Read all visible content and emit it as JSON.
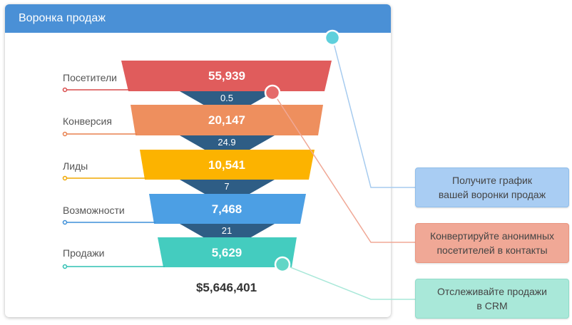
{
  "card": {
    "title": "Воронка продаж"
  },
  "funnel": {
    "stages": [
      {
        "label": "Посетители",
        "value": "55,939",
        "color": "#e05c5c",
        "dot_color": "#d94c4c"
      },
      {
        "label": "Конверсия",
        "value": "20,147",
        "color": "#ee8f5e",
        "dot_color": "#e8804e"
      },
      {
        "label": "Лиды",
        "value": "10,541",
        "color": "#fcb300",
        "dot_color": "#f0a800"
      },
      {
        "label": "Возможности",
        "value": "7,468",
        "color": "#4c9fe4",
        "dot_color": "#3d8fd8"
      },
      {
        "label": "Продажи",
        "value": "5,629",
        "color": "#44ccbf",
        "dot_color": "#2fc0b3"
      }
    ],
    "conversions": [
      "0.5",
      "24.9",
      "7",
      "21"
    ],
    "connector_color": "#2e5d85",
    "total": "$5,646,401"
  },
  "callouts": [
    {
      "lines": [
        "Получите график",
        "вашей воронки продаж"
      ],
      "bg": "#a9cdf3",
      "border": "#8fbdea",
      "line_color": "#a6cbef"
    },
    {
      "lines": [
        "Конвертируйте анонимных",
        "посетителей в контакты"
      ],
      "bg": "#f0a896",
      "border": "#e9957f",
      "line_color": "#f0a896"
    },
    {
      "lines": [
        "Отслеживайте продажи",
        "в CRM"
      ],
      "bg": "#a9e8d9",
      "border": "#8fdcc9",
      "line_color": "#a9e8d9"
    }
  ],
  "markers": {
    "teal": "#5fd0dc",
    "red": "#e56a6a",
    "mint": "#62d6c6"
  }
}
